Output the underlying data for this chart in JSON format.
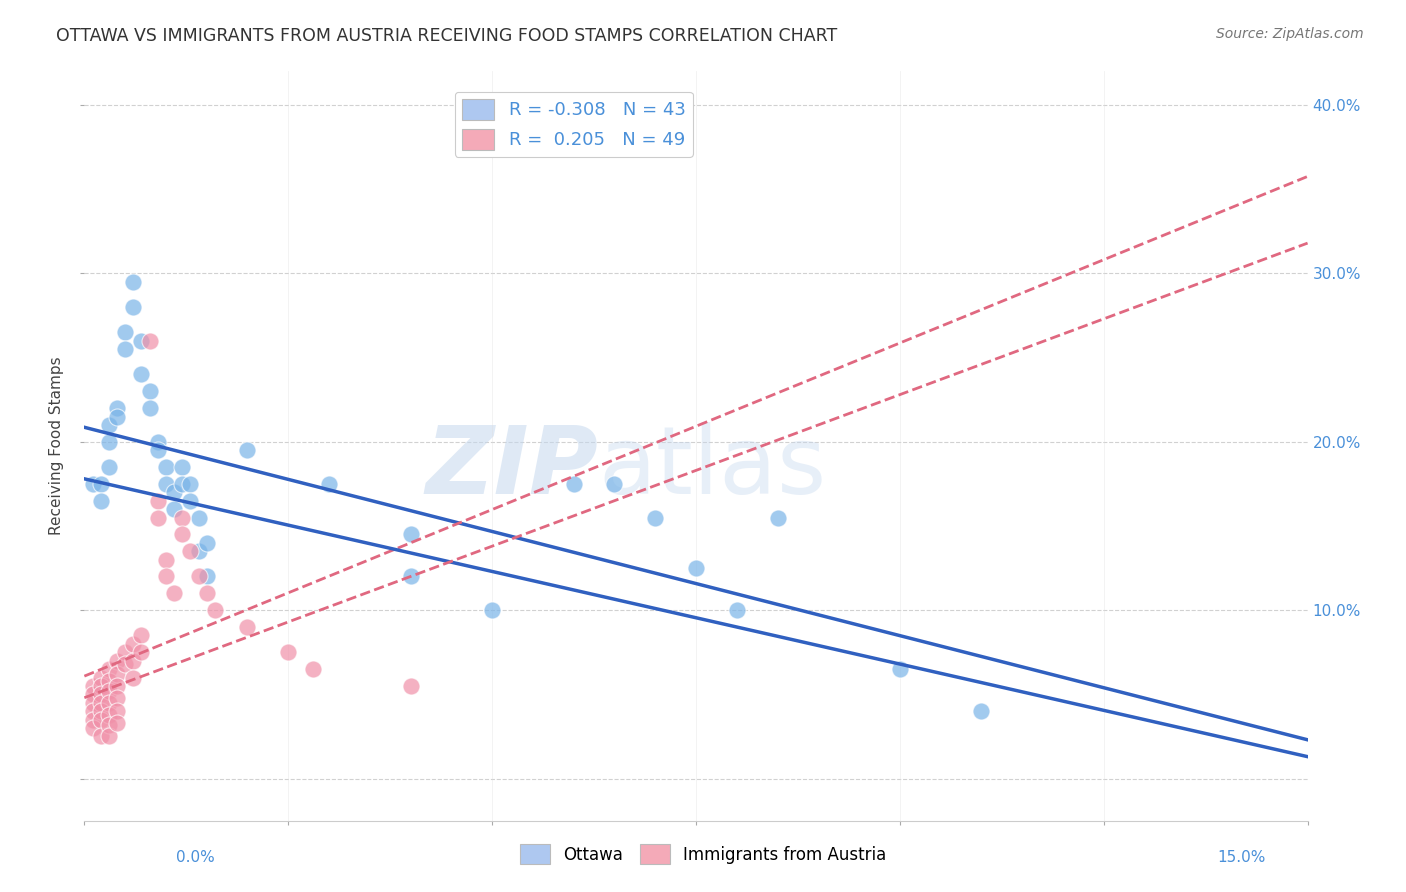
{
  "title": "OTTAWA VS IMMIGRANTS FROM AUSTRIA RECEIVING FOOD STAMPS CORRELATION CHART",
  "source": "Source: ZipAtlas.com",
  "ylabel": "Receiving Food Stamps",
  "ytick_values": [
    0.0,
    0.1,
    0.2,
    0.3,
    0.4
  ],
  "xmin": 0.0,
  "xmax": 0.15,
  "ymin": -0.025,
  "ymax": 0.42,
  "watermark_zip": "ZIP",
  "watermark_atlas": "atlas",
  "watermark_color": "#c8d8ee",
  "ottawa_color": "#7ab4e8",
  "austria_color": "#f090a8",
  "ottawa_line_color": "#3060c0",
  "austria_line_color": "#e06880",
  "grid_color": "#cccccc",
  "background_color": "#ffffff",
  "ottawa_points": [
    [
      0.001,
      0.175
    ],
    [
      0.002,
      0.175
    ],
    [
      0.002,
      0.165
    ],
    [
      0.003,
      0.21
    ],
    [
      0.003,
      0.2
    ],
    [
      0.003,
      0.185
    ],
    [
      0.004,
      0.22
    ],
    [
      0.004,
      0.215
    ],
    [
      0.005,
      0.265
    ],
    [
      0.005,
      0.255
    ],
    [
      0.006,
      0.295
    ],
    [
      0.006,
      0.28
    ],
    [
      0.007,
      0.26
    ],
    [
      0.007,
      0.24
    ],
    [
      0.008,
      0.23
    ],
    [
      0.008,
      0.22
    ],
    [
      0.009,
      0.2
    ],
    [
      0.009,
      0.195
    ],
    [
      0.01,
      0.185
    ],
    [
      0.01,
      0.175
    ],
    [
      0.011,
      0.17
    ],
    [
      0.011,
      0.16
    ],
    [
      0.012,
      0.185
    ],
    [
      0.012,
      0.175
    ],
    [
      0.013,
      0.175
    ],
    [
      0.013,
      0.165
    ],
    [
      0.014,
      0.155
    ],
    [
      0.014,
      0.135
    ],
    [
      0.015,
      0.14
    ],
    [
      0.015,
      0.12
    ],
    [
      0.02,
      0.195
    ],
    [
      0.03,
      0.175
    ],
    [
      0.04,
      0.145
    ],
    [
      0.04,
      0.12
    ],
    [
      0.05,
      0.1
    ],
    [
      0.06,
      0.175
    ],
    [
      0.065,
      0.175
    ],
    [
      0.07,
      0.155
    ],
    [
      0.075,
      0.125
    ],
    [
      0.08,
      0.1
    ],
    [
      0.085,
      0.155
    ],
    [
      0.1,
      0.065
    ],
    [
      0.11,
      0.04
    ]
  ],
  "austria_points": [
    [
      0.001,
      0.055
    ],
    [
      0.001,
      0.05
    ],
    [
      0.001,
      0.045
    ],
    [
      0.001,
      0.04
    ],
    [
      0.001,
      0.035
    ],
    [
      0.001,
      0.03
    ],
    [
      0.002,
      0.06
    ],
    [
      0.002,
      0.055
    ],
    [
      0.002,
      0.05
    ],
    [
      0.002,
      0.045
    ],
    [
      0.002,
      0.04
    ],
    [
      0.002,
      0.035
    ],
    [
      0.002,
      0.025
    ],
    [
      0.003,
      0.065
    ],
    [
      0.003,
      0.058
    ],
    [
      0.003,
      0.052
    ],
    [
      0.003,
      0.045
    ],
    [
      0.003,
      0.038
    ],
    [
      0.003,
      0.032
    ],
    [
      0.003,
      0.025
    ],
    [
      0.004,
      0.07
    ],
    [
      0.004,
      0.062
    ],
    [
      0.004,
      0.055
    ],
    [
      0.004,
      0.048
    ],
    [
      0.004,
      0.04
    ],
    [
      0.004,
      0.033
    ],
    [
      0.005,
      0.075
    ],
    [
      0.005,
      0.068
    ],
    [
      0.006,
      0.08
    ],
    [
      0.006,
      0.07
    ],
    [
      0.006,
      0.06
    ],
    [
      0.007,
      0.085
    ],
    [
      0.007,
      0.075
    ],
    [
      0.008,
      0.26
    ],
    [
      0.009,
      0.165
    ],
    [
      0.009,
      0.155
    ],
    [
      0.01,
      0.13
    ],
    [
      0.01,
      0.12
    ],
    [
      0.011,
      0.11
    ],
    [
      0.012,
      0.155
    ],
    [
      0.012,
      0.145
    ],
    [
      0.013,
      0.135
    ],
    [
      0.014,
      0.12
    ],
    [
      0.015,
      0.11
    ],
    [
      0.016,
      0.1
    ],
    [
      0.02,
      0.09
    ],
    [
      0.025,
      0.075
    ],
    [
      0.028,
      0.065
    ],
    [
      0.04,
      0.055
    ]
  ],
  "ottawa_trend": [
    -1.1,
    0.178
  ],
  "austria_trend": [
    1.8,
    0.048
  ]
}
